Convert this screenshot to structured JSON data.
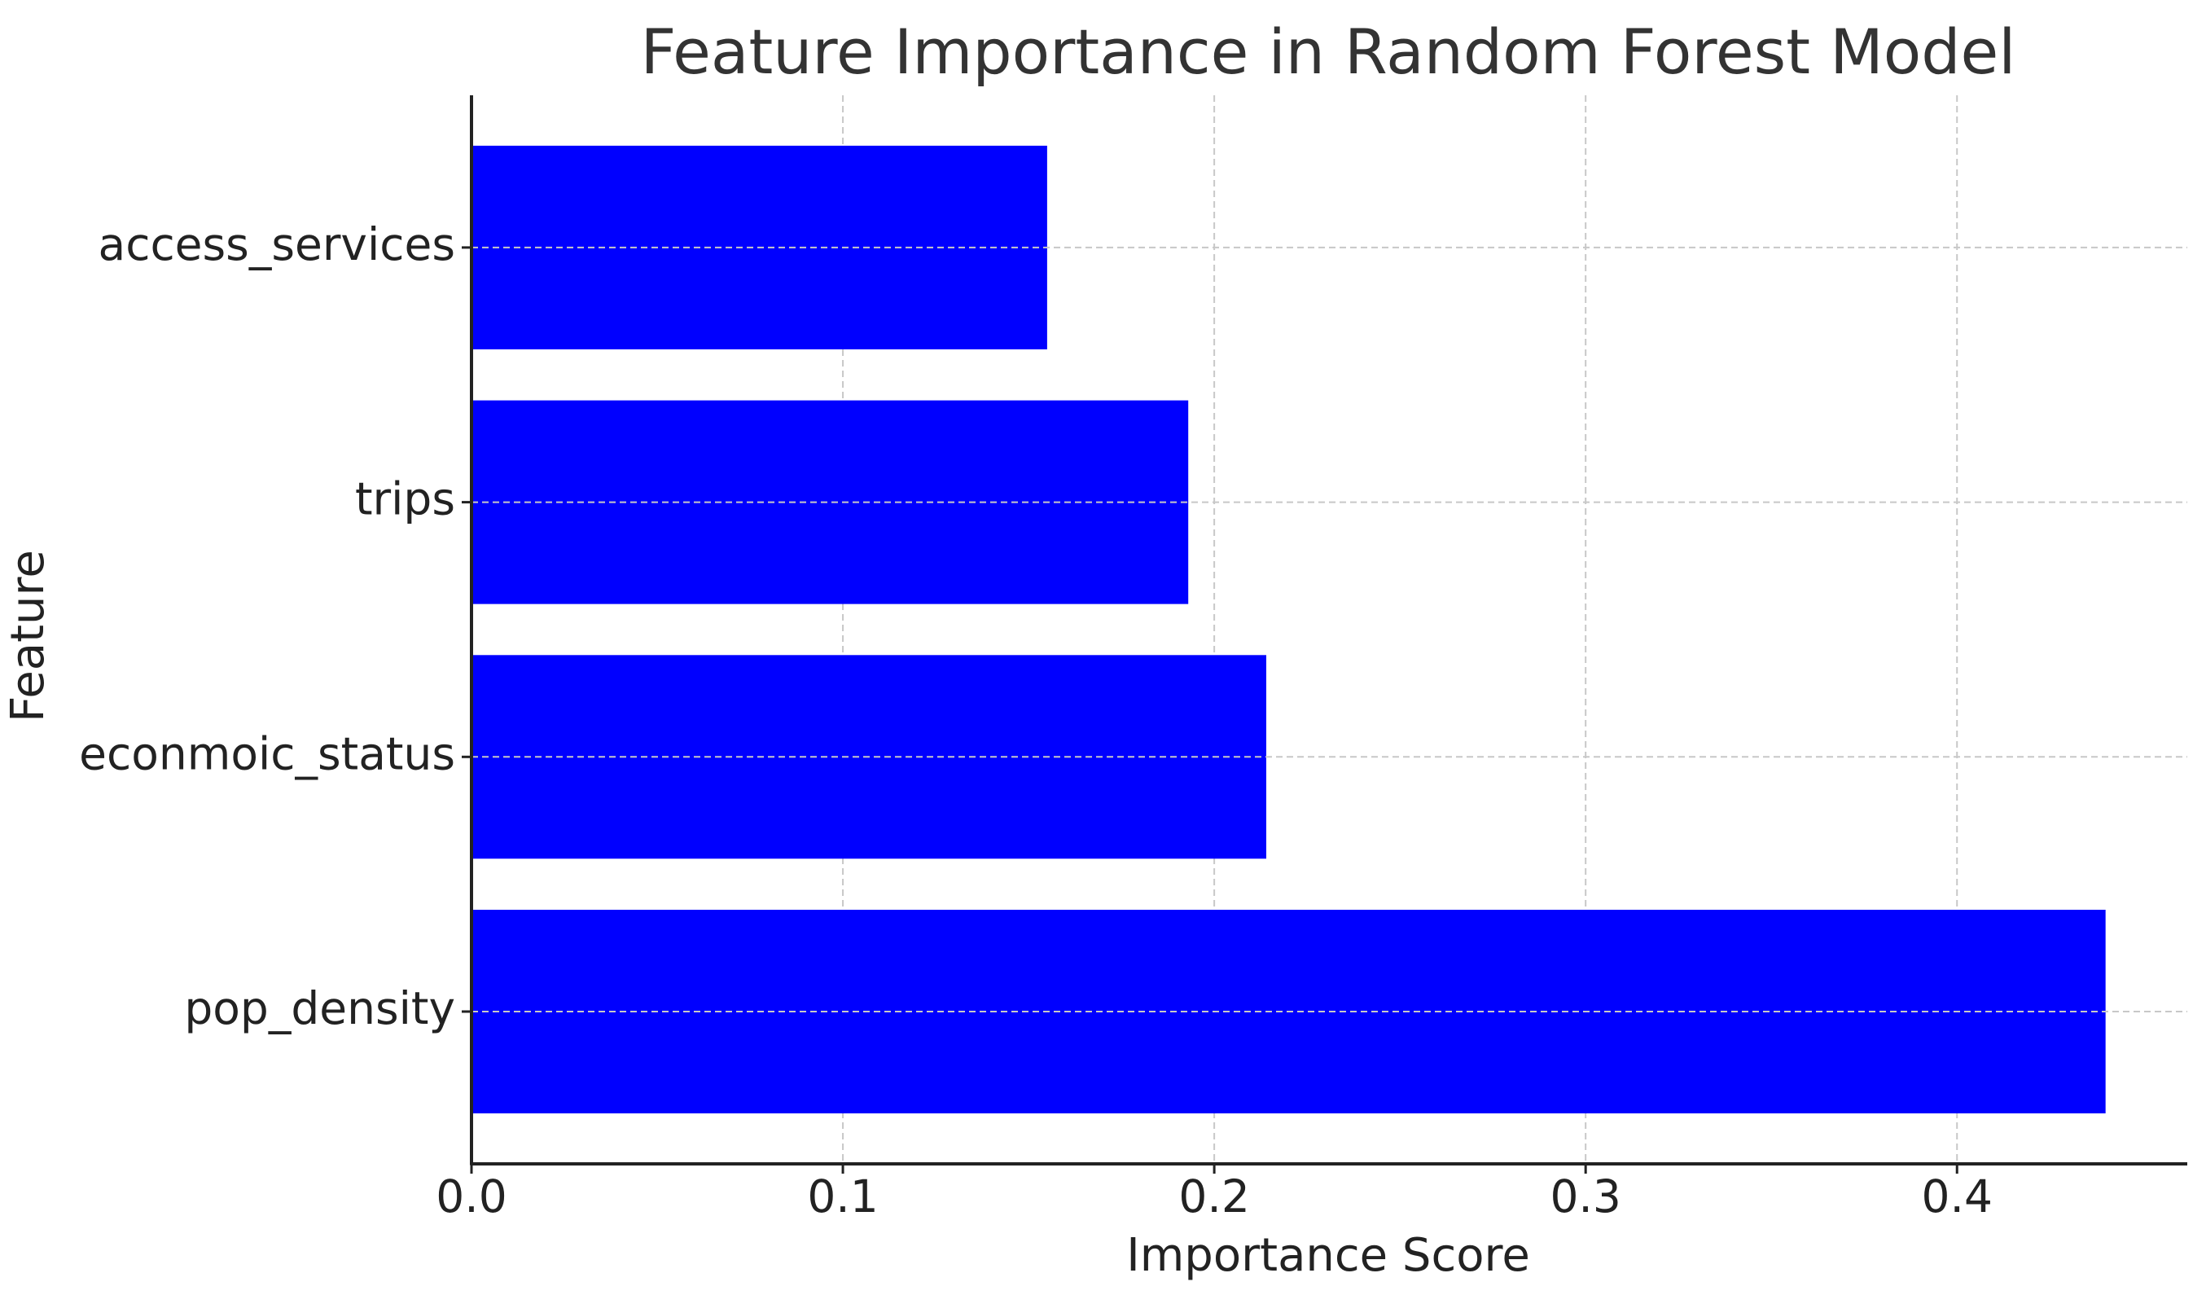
{
  "chart_data": {
    "type": "barh",
    "title": "Feature Importance in Random Forest Model",
    "x_label": "Importance Score",
    "y_label": "Feature",
    "categories": [
      "pop_density",
      "econmoic_status",
      "trips",
      "access_services"
    ],
    "values": [
      0.44,
      0.214,
      0.193,
      0.155
    ],
    "color": "#0000ff",
    "xlim": [
      0,
      0.462
    ],
    "xticks": [
      {
        "value": 0,
        "label": "0.0"
      },
      0.1,
      0.2,
      0.3,
      0.4
    ],
    "grid": true
  }
}
